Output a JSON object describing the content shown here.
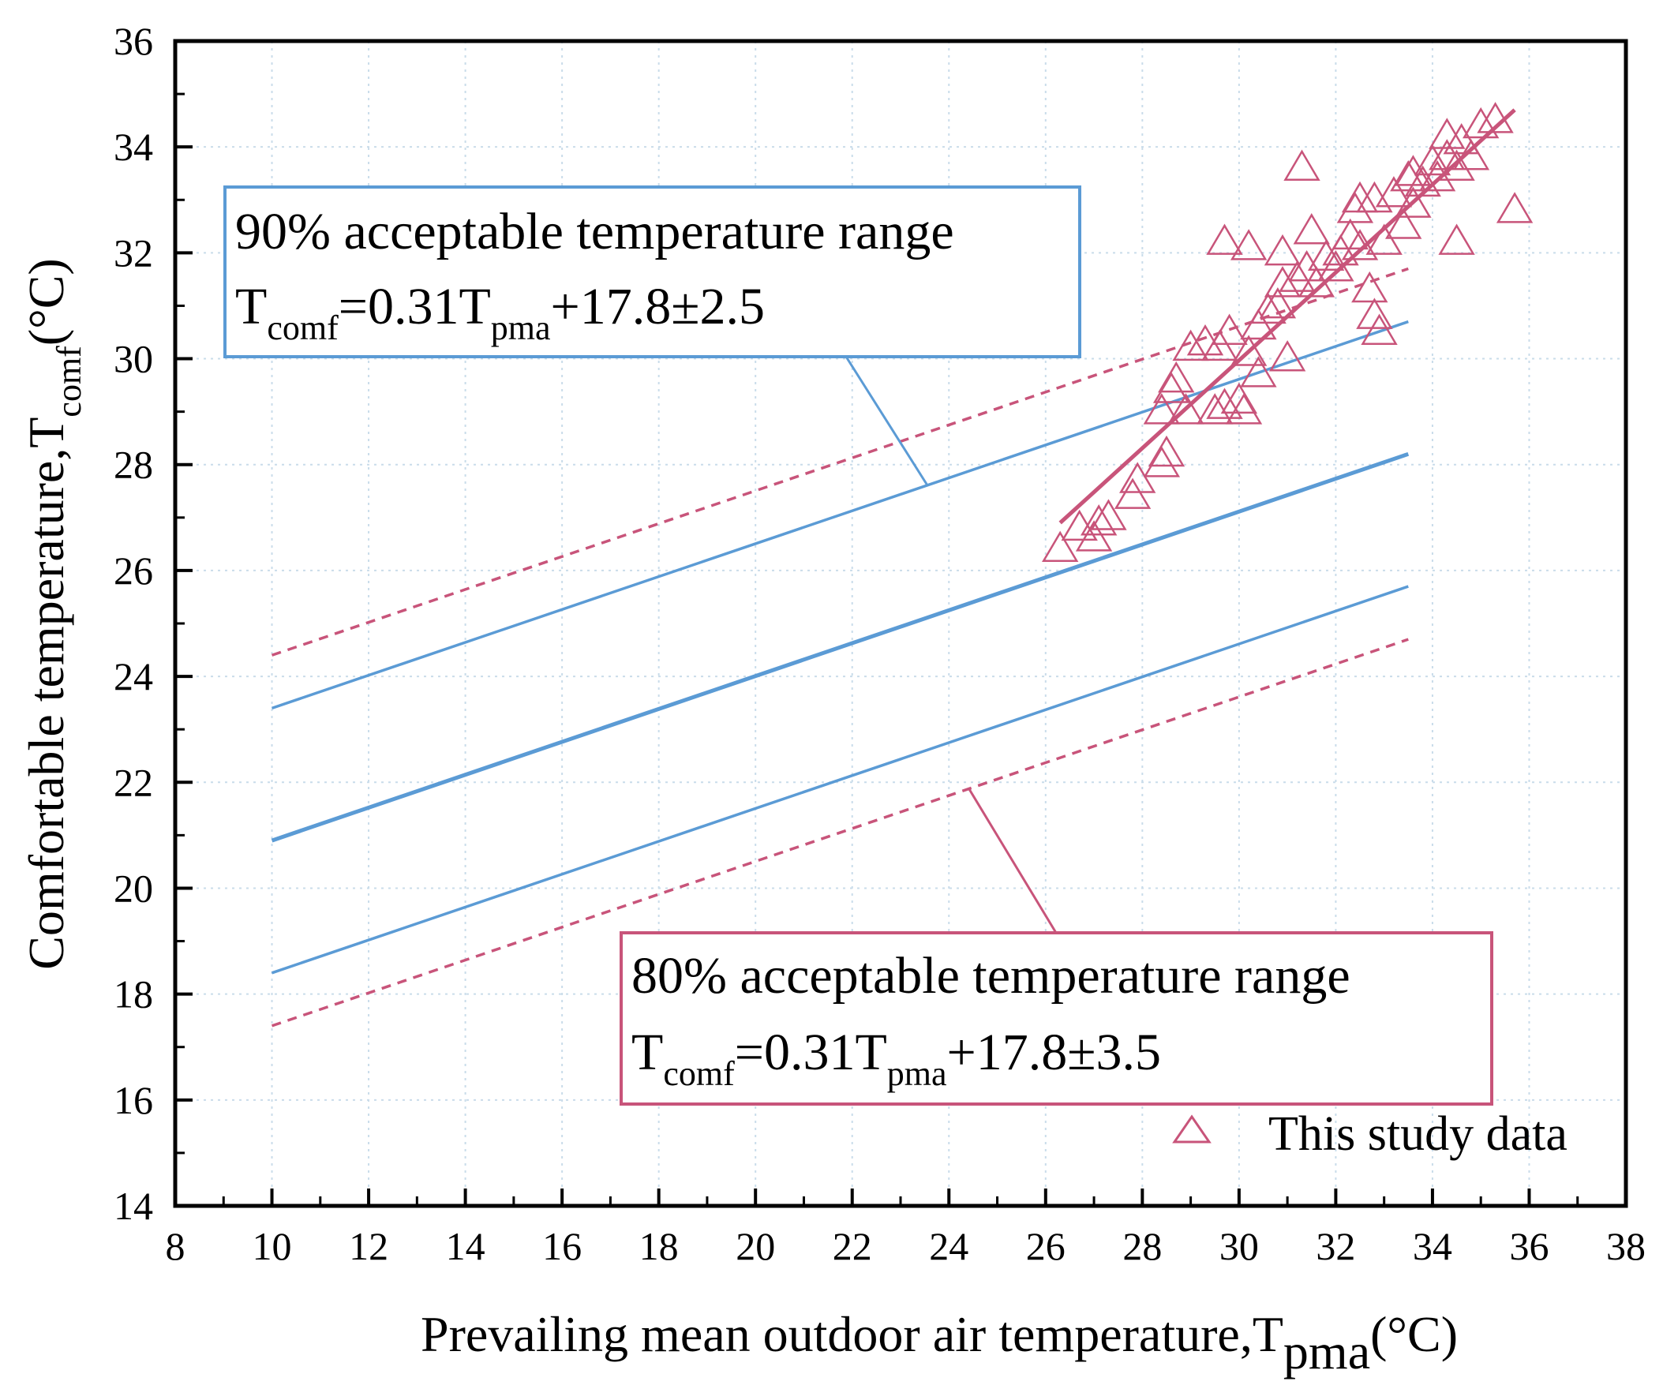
{
  "chart_data": {
    "type": "scatter",
    "xlabel": {
      "main": "Prevailing mean outdoor air temperature,T",
      "sub": "pma",
      "unit": "(°C)"
    },
    "ylabel": {
      "main": "Comfortable temperature,T",
      "sub": "comf",
      "unit": "(°C)"
    },
    "xlim": [
      8,
      38
    ],
    "ylim": [
      14,
      36
    ],
    "xticks": [
      "8",
      "10",
      "12",
      "14",
      "16",
      "18",
      "20",
      "22",
      "24",
      "26",
      "28",
      "30",
      "32",
      "34",
      "36",
      "38"
    ],
    "yticks": [
      "14",
      "16",
      "18",
      "20",
      "22",
      "24",
      "26",
      "28",
      "30",
      "32",
      "34",
      "36"
    ],
    "grid": true,
    "colors": {
      "blue": "#5b9bd5",
      "pink": "#c8547a"
    },
    "lines": [
      {
        "name": "neutral",
        "color": "#5b9bd5",
        "style": "solid",
        "width": "thick",
        "x": [
          10,
          33.5
        ],
        "y": [
          20.9,
          28.2
        ]
      },
      {
        "name": "90-upper",
        "color": "#5b9bd5",
        "style": "solid",
        "x": [
          10,
          33.5
        ],
        "y": [
          23.4,
          30.7
        ]
      },
      {
        "name": "90-lower",
        "color": "#5b9bd5",
        "style": "solid",
        "x": [
          10,
          33.5
        ],
        "y": [
          18.4,
          25.7
        ]
      },
      {
        "name": "80-upper",
        "color": "#c8547a",
        "style": "dashed",
        "x": [
          10,
          33.5
        ],
        "y": [
          24.4,
          31.7
        ]
      },
      {
        "name": "80-lower",
        "color": "#c8547a",
        "style": "dashed",
        "x": [
          10,
          33.5
        ],
        "y": [
          17.4,
          24.7
        ]
      },
      {
        "name": "fit",
        "color": "#c8547a",
        "style": "solid",
        "width": "thick",
        "x": [
          26.3,
          35.7
        ],
        "y": [
          26.9,
          34.7
        ]
      }
    ],
    "scatter": {
      "name": "This study data",
      "marker": "open-triangle",
      "color": "#c8547a",
      "points": [
        [
          26.3,
          26.4
        ],
        [
          26.7,
          26.8
        ],
        [
          27.0,
          26.6
        ],
        [
          27.1,
          26.9
        ],
        [
          27.3,
          27.0
        ],
        [
          27.8,
          27.4
        ],
        [
          27.9,
          27.7
        ],
        [
          28.4,
          28.0
        ],
        [
          28.5,
          28.2
        ],
        [
          28.4,
          29.0
        ],
        [
          28.6,
          29.4
        ],
        [
          28.7,
          29.6
        ],
        [
          29.0,
          30.2
        ],
        [
          29.3,
          30.3
        ],
        [
          29.5,
          29.0
        ],
        [
          29.7,
          29.1
        ],
        [
          29.6,
          30.2
        ],
        [
          29.8,
          30.5
        ],
        [
          30.0,
          29.2
        ],
        [
          30.1,
          29.0
        ],
        [
          30.2,
          30.1
        ],
        [
          30.4,
          29.7
        ],
        [
          30.4,
          30.6
        ],
        [
          30.6,
          30.9
        ],
        [
          30.8,
          31.0
        ],
        [
          30.9,
          31.4
        ],
        [
          31.0,
          30.0
        ],
        [
          31.2,
          31.5
        ],
        [
          31.4,
          31.7
        ],
        [
          31.6,
          31.4
        ],
        [
          31.8,
          31.9
        ],
        [
          32.0,
          31.7
        ],
        [
          32.1,
          32.0
        ],
        [
          32.3,
          32.3
        ],
        [
          32.4,
          32.8
        ],
        [
          32.5,
          32.1
        ],
        [
          32.7,
          31.3
        ],
        [
          32.8,
          30.8
        ],
        [
          32.9,
          30.5
        ],
        [
          32.8,
          33.0
        ],
        [
          33.0,
          32.2
        ],
        [
          33.2,
          33.1
        ],
        [
          33.4,
          32.5
        ],
        [
          33.5,
          33.4
        ],
        [
          33.6,
          32.9
        ],
        [
          33.8,
          33.3
        ],
        [
          34.0,
          33.7
        ],
        [
          34.1,
          33.4
        ],
        [
          34.3,
          33.8
        ],
        [
          34.5,
          33.6
        ],
        [
          34.6,
          34.1
        ],
        [
          34.8,
          33.8
        ],
        [
          35.0,
          34.4
        ],
        [
          35.3,
          34.5
        ],
        [
          35.7,
          32.8
        ],
        [
          34.5,
          32.2
        ],
        [
          31.3,
          33.6
        ],
        [
          29.7,
          32.2
        ],
        [
          30.2,
          32.1
        ],
        [
          30.9,
          32.0
        ],
        [
          31.5,
          32.4
        ],
        [
          32.5,
          33.0
        ],
        [
          33.6,
          33.5
        ],
        [
          34.3,
          34.2
        ],
        [
          28.9,
          29.0
        ]
      ]
    },
    "annotations": [
      {
        "name": "90-range",
        "color": "#5b9bd5",
        "line1": "90% acceptable temperature range",
        "formula": {
          "t1": "T",
          "s1": "comf",
          "t2": "=0.31T",
          "s2": "pma",
          "t3": "+17.8±2.5"
        }
      },
      {
        "name": "80-range",
        "color": "#c8547a",
        "line1": "80% acceptable  temperature range",
        "formula": {
          "t1": "T",
          "s1": "comf",
          "t2": "=0.31T",
          "s2": "pma",
          "t3": "+17.8±3.5"
        }
      }
    ],
    "legend": {
      "label": "This study data",
      "position": "bottom-right"
    }
  }
}
